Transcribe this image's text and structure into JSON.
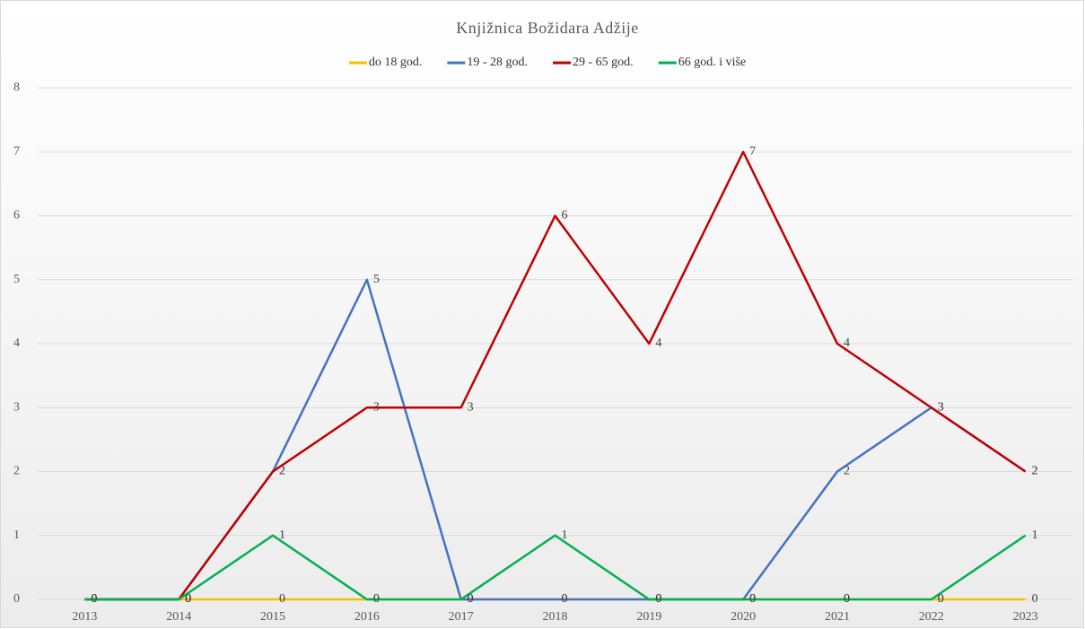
{
  "chart_data": {
    "type": "line",
    "title": "Knjižnica Božidara Adžije",
    "categories": [
      "2013",
      "2014",
      "2015",
      "2016",
      "2017",
      "2018",
      "2019",
      "2020",
      "2021",
      "2022",
      "2023"
    ],
    "series": [
      {
        "name": "do 18 god.",
        "color": "#f5c000",
        "values": [
          0,
          0,
          0,
          0,
          0,
          0,
          0,
          0,
          0,
          0,
          0
        ]
      },
      {
        "name": "19 - 28 god.",
        "color": "#4472c4",
        "values": [
          0,
          0,
          2,
          5,
          0,
          0,
          0,
          0,
          2,
          3,
          2
        ]
      },
      {
        "name": "29 - 65 god.",
        "color": "#c00000",
        "values": [
          0,
          0,
          2,
          3,
          3,
          6,
          4,
          7,
          4,
          3,
          2
        ]
      },
      {
        "name": "66 god. i više",
        "color": "#00b050",
        "values": [
          0,
          0,
          1,
          0,
          0,
          1,
          0,
          0,
          0,
          0,
          1
        ]
      }
    ],
    "ylim": [
      0,
      8
    ],
    "yticks": [
      0,
      1,
      2,
      3,
      4,
      5,
      6,
      7,
      8
    ],
    "grid": true,
    "legend": "top"
  }
}
